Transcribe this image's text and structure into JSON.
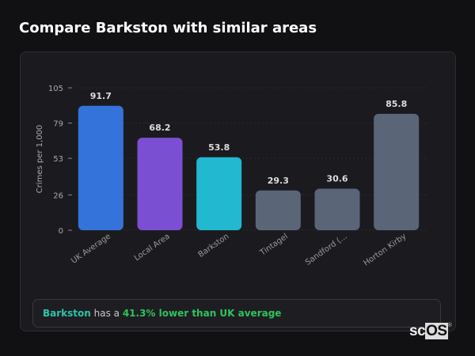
{
  "page_title": "Compare Barkston with similar areas",
  "chart_data": {
    "type": "bar",
    "title": "",
    "ylabel": "Crimes per 1,000",
    "xlabel": "",
    "ylim": [
      0,
      105
    ],
    "yticks": [
      0,
      26,
      53,
      79,
      105
    ],
    "grid": true,
    "categories": [
      "UK Average",
      "Local Area",
      "Barkston",
      "Tintagel",
      "Sandford (...",
      "Horton Kirby"
    ],
    "values": [
      91.7,
      68.2,
      53.8,
      29.3,
      30.6,
      85.8
    ],
    "value_labels": [
      "91.7",
      "68.2",
      "53.8",
      "29.3",
      "30.6",
      "85.8"
    ],
    "colors": [
      "#3473da",
      "#7b4fd2",
      "#22b8cf",
      "#5a6578",
      "#5a6578",
      "#5a6578"
    ]
  },
  "summary": {
    "area": "Barkston",
    "middle": " has a ",
    "highlight": "41.3% lower than UK average"
  },
  "logo": {
    "text": "scOS",
    "mark": "®"
  }
}
